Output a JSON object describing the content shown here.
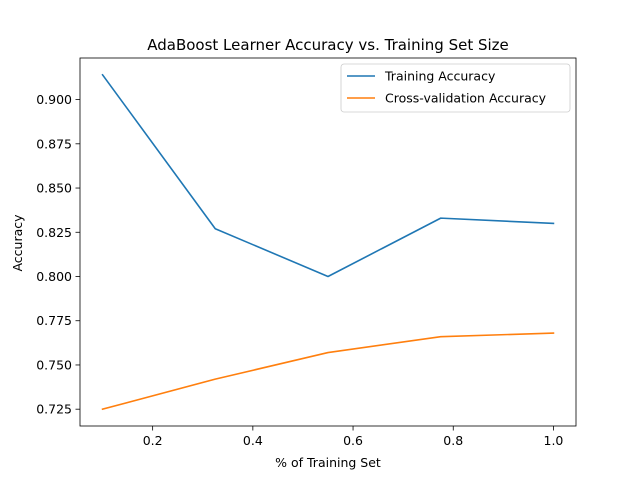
{
  "chart_data": {
    "type": "line",
    "title": "AdaBoost Learner Accuracy vs. Training Set Size",
    "xlabel": "% of Training Set",
    "ylabel": "Accuracy",
    "xlim": [
      0.055,
      1.045
    ],
    "ylim": [
      0.7155,
      0.9235
    ],
    "xticks": [
      0.2,
      0.4,
      0.6,
      0.8,
      1.0
    ],
    "xtick_labels": [
      "0.2",
      "0.4",
      "0.6",
      "0.8",
      "1.0"
    ],
    "yticks": [
      0.725,
      0.75,
      0.775,
      0.8,
      0.825,
      0.85,
      0.875,
      0.9
    ],
    "ytick_labels": [
      "0.725",
      "0.750",
      "0.775",
      "0.800",
      "0.825",
      "0.850",
      "0.875",
      "0.900"
    ],
    "grid": false,
    "legend_position": "top-right",
    "x": [
      0.1,
      0.325,
      0.55,
      0.775,
      1.0
    ],
    "series": [
      {
        "name": "Training Accuracy",
        "color": "#1f77b4",
        "values": [
          0.914,
          0.827,
          0.8,
          0.833,
          0.83
        ]
      },
      {
        "name": "Cross-validation Accuracy",
        "color": "#ff7f0e",
        "values": [
          0.725,
          0.742,
          0.757,
          0.766,
          0.768
        ]
      }
    ]
  }
}
